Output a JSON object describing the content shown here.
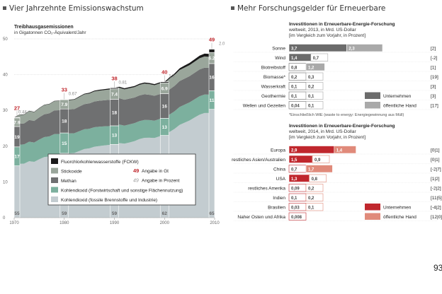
{
  "left": {
    "heading": "Vier Jahrzehnte Emissionswachstum",
    "subtitle": "Treibhausgasemissionen",
    "unit": "in Gigatonnen CO₂-Äquivalent/Jahr"
  },
  "right": {
    "heading": "Mehr Forschungsgelder für Erneuerbare",
    "footnote": "*Einschließlich WtE (waste to energy: Energiegewinnung aus Müll)"
  },
  "page_number": "93",
  "chart_data": [
    {
      "type": "area",
      "title": "Treibhausgasemissionen",
      "ylabel": "in Gigatonnen CO₂-Äquivalent/Jahr",
      "x": [
        1970,
        1980,
        1990,
        2000,
        2010
      ],
      "ylim": [
        0,
        50
      ],
      "yticks": [
        0,
        10,
        20,
        30,
        40,
        50
      ],
      "xticks": [
        "1970",
        "1980",
        "1990",
        "2000",
        "2010"
      ],
      "series": [
        {
          "name": "Kohlendioxid (fossile Brennstoffe und Industrie)",
          "color": "#c3ccd0",
          "values": [
            14.5,
            18,
            20.5,
            23,
            30.3
          ],
          "labels_pct": [
            "55",
            "59",
            "59",
            "62",
            "65"
          ]
        },
        {
          "name": "Kohlendioxid (Forstwirtschaft und sonstige Flächennutzung)",
          "color": "#7cb09e",
          "values": [
            5.3,
            5.7,
            5.2,
            4.8,
            5.2
          ],
          "labels_pct": [
            "17",
            "15",
            "13",
            "13",
            "11"
          ]
        },
        {
          "name": "Methan",
          "color": "#6f7071",
          "values": [
            5.7,
            6.7,
            7.4,
            6.9,
            7.6
          ],
          "labels_pct": [
            "19",
            "18",
            "18",
            "16",
            "16"
          ]
        },
        {
          "name": "Stickoxide",
          "color": "#9aa69b",
          "values": [
            2.4,
            2.6,
            2.9,
            3.0,
            3.1
          ],
          "labels_pct": [
            "7.9",
            "7.9",
            "7.4",
            "6.9",
            "6.2"
          ]
        },
        {
          "name": "Fluorchlorkohlenwasserstoffe (FCKW)",
          "color": "#1a1a1a",
          "values": [
            0.1,
            0.1,
            0.3,
            0.3,
            0.9
          ],
          "labels_pct": [
            "0.44",
            "0.67",
            "0.81",
            "1.3",
            "2.0"
          ]
        }
      ],
      "totals": [
        27,
        33,
        38,
        40,
        49
      ],
      "legend_extra": [
        "Angabe in Gt",
        "Angabe in Prozent"
      ],
      "legend_extra_symbols": [
        "49",
        "49"
      ]
    },
    {
      "type": "bar",
      "title": "Investitionen in Erneuerbare-Energie-Forschung",
      "subtitle": "weltweit, 2013, in Mrd. US-Dollar",
      "note": "[im Vergleich zum Vorjahr, in Prozent]",
      "categories": [
        "Sonne",
        "Wind",
        "Biotreibstoff",
        "Biomasse*",
        "Wasserkraft",
        "Geothermie",
        "Wellen und Gezeiten"
      ],
      "series": [
        {
          "name": "Unternehmen",
          "color": "#6b6b6b",
          "values": [
            3.7,
            1.4,
            0.8,
            0.2,
            0.1,
            0.1,
            0.04
          ],
          "labels": [
            "3,7",
            "1,4",
            "0,8",
            "0,2",
            "0,1",
            "0,1",
            "0,04"
          ]
        },
        {
          "name": "öffentliche Hand",
          "color": "#a9a9a9",
          "values": [
            2.3,
            0.7,
            1.2,
            0.3,
            0.2,
            0.1,
            0.1
          ],
          "labels": [
            "2,3",
            "0,7",
            "1,2",
            "0,3",
            "0,2",
            "0,1",
            "0,1"
          ]
        }
      ],
      "changes": [
        "[2]",
        "[-2]",
        "[1]",
        "[19]",
        "[3]",
        "[3]",
        "[17]"
      ]
    },
    {
      "type": "bar",
      "title": "Investitionen in Erneuerbare-Energie-Forschung",
      "subtitle": "weltweit, 2014, in Mrd. US-Dollar",
      "note": "[im Vergleich zum Vorjahr, in Prozent]",
      "categories": [
        "Europa",
        "restliches Asien/Australien",
        "China",
        "USA",
        "restliches Amerika",
        "Indien",
        "Brasilien",
        "Naher Osten und Afrika"
      ],
      "series": [
        {
          "name": "Unternehmen",
          "color": "#c0272d",
          "values": [
            2.9,
            1.5,
            0.7,
            1.3,
            0.09,
            0.1,
            0.03,
            0.008
          ],
          "labels": [
            "2,9",
            "1,5",
            "0,7",
            "1,3",
            "0,09",
            "0,1",
            "0,03",
            "0,008"
          ]
        },
        {
          "name": "öffentliche Hand",
          "color": "#e08a7a",
          "values": [
            1.4,
            0.9,
            1.7,
            0.8,
            0.2,
            0.2,
            0.1,
            0
          ],
          "labels": [
            "1,4",
            "0,9",
            "1,7",
            "0,8",
            "0,2",
            "0,2",
            "0,1",
            ""
          ]
        }
      ],
      "changes": [
        "[0|1]",
        "[0|1]",
        "[-2|7]",
        "[1|2]",
        "[-2|2]",
        "[11|5]",
        "[-4|2]",
        "[12|0]"
      ]
    }
  ]
}
